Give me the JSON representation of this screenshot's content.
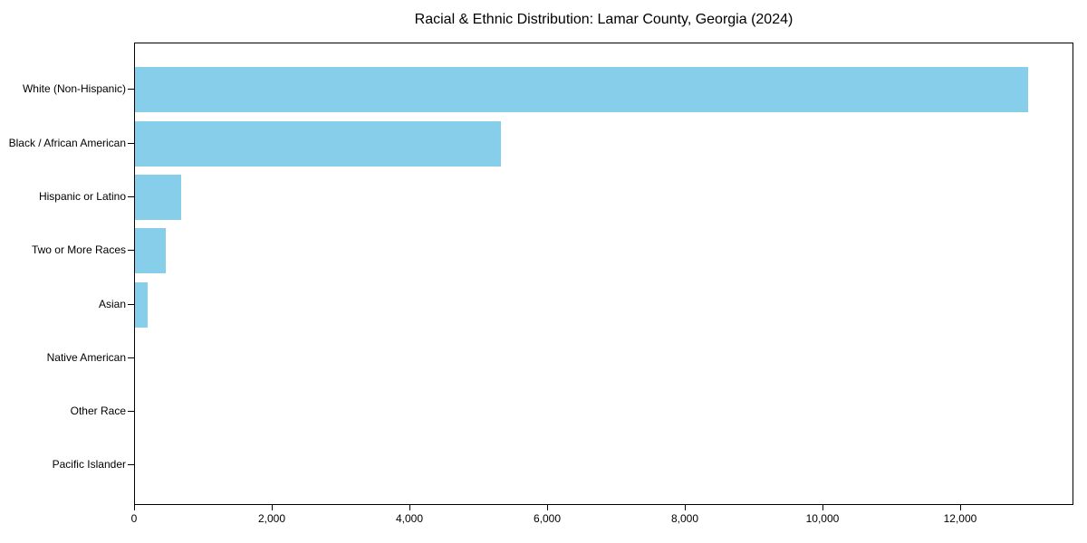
{
  "chart_data": {
    "type": "bar",
    "orientation": "horizontal",
    "title": "Racial & Ethnic Distribution: Lamar County, Georgia (2024)",
    "categories": [
      "White (Non-Hispanic)",
      "Black / African American",
      "Hispanic or Latino",
      "Two or More Races",
      "Asian",
      "Native American",
      "Other Race",
      "Pacific Islander"
    ],
    "values": [
      13000,
      5320,
      670,
      445,
      180,
      0,
      0,
      0
    ],
    "xlabel": "",
    "ylabel": "",
    "xlim": [
      0,
      13645
    ],
    "x_ticks": [
      0,
      2000,
      4000,
      6000,
      8000,
      10000,
      12000
    ],
    "x_tick_labels": [
      "0",
      "2,000",
      "4,000",
      "6,000",
      "8,000",
      "10,000",
      "12,000"
    ],
    "bar_color": "#87CEEB",
    "axis_color": "#000000",
    "text_color": "#000000",
    "background_color": "#FFFFFF",
    "grid": false,
    "legend": null
  }
}
